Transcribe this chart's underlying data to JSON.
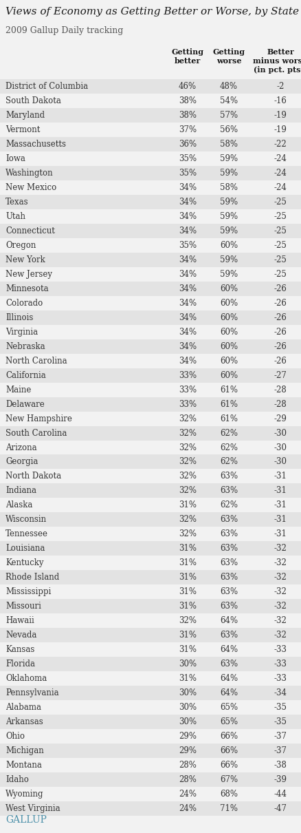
{
  "title": "Views of Economy as Getting Better or Worse, by State",
  "subtitle": "2009 Gallup Daily tracking",
  "col_headers_line1": [
    "Getting",
    "Getting",
    "Better"
  ],
  "col_headers_line2": [
    "better",
    "worse",
    "minus worse"
  ],
  "col_headers_line3": [
    "",
    "",
    "(in pct. pts.)"
  ],
  "states": [
    "District of Columbia",
    "South Dakota",
    "Maryland",
    "Vermont",
    "Massachusetts",
    "Iowa",
    "Washington",
    "New Mexico",
    "Texas",
    "Utah",
    "Connecticut",
    "Oregon",
    "New York",
    "New Jersey",
    "Minnesota",
    "Colorado",
    "Illinois",
    "Virginia",
    "Nebraska",
    "North Carolina",
    "California",
    "Maine",
    "Delaware",
    "New Hampshire",
    "South Carolina",
    "Arizona",
    "Georgia",
    "North Dakota",
    "Indiana",
    "Alaska",
    "Wisconsin",
    "Tennessee",
    "Louisiana",
    "Kentucky",
    "Rhode Island",
    "Mississippi",
    "Missouri",
    "Hawaii",
    "Nevada",
    "Kansas",
    "Florida",
    "Oklahoma",
    "Pennsylvania",
    "Alabama",
    "Arkansas",
    "Ohio",
    "Michigan",
    "Montana",
    "Idaho",
    "Wyoming",
    "West Virginia"
  ],
  "getting_better": [
    "46%",
    "38%",
    "38%",
    "37%",
    "36%",
    "35%",
    "35%",
    "34%",
    "34%",
    "34%",
    "34%",
    "35%",
    "34%",
    "34%",
    "34%",
    "34%",
    "34%",
    "34%",
    "34%",
    "34%",
    "33%",
    "33%",
    "33%",
    "32%",
    "32%",
    "32%",
    "32%",
    "32%",
    "32%",
    "31%",
    "32%",
    "32%",
    "31%",
    "31%",
    "31%",
    "31%",
    "31%",
    "32%",
    "31%",
    "31%",
    "30%",
    "31%",
    "30%",
    "30%",
    "30%",
    "29%",
    "29%",
    "28%",
    "28%",
    "24%",
    "24%"
  ],
  "getting_worse": [
    "48%",
    "54%",
    "57%",
    "56%",
    "58%",
    "59%",
    "59%",
    "58%",
    "59%",
    "59%",
    "59%",
    "60%",
    "59%",
    "59%",
    "60%",
    "60%",
    "60%",
    "60%",
    "60%",
    "60%",
    "60%",
    "61%",
    "61%",
    "61%",
    "62%",
    "62%",
    "62%",
    "63%",
    "63%",
    "62%",
    "63%",
    "63%",
    "63%",
    "63%",
    "63%",
    "63%",
    "63%",
    "64%",
    "63%",
    "64%",
    "63%",
    "64%",
    "64%",
    "65%",
    "65%",
    "66%",
    "66%",
    "66%",
    "67%",
    "68%",
    "71%"
  ],
  "better_minus_worse": [
    "-2",
    "-16",
    "-19",
    "-19",
    "-22",
    "-24",
    "-24",
    "-24",
    "-25",
    "-25",
    "-25",
    "-25",
    "-25",
    "-25",
    "-26",
    "-26",
    "-26",
    "-26",
    "-26",
    "-26",
    "-27",
    "-28",
    "-28",
    "-29",
    "-30",
    "-30",
    "-30",
    "-31",
    "-31",
    "-31",
    "-31",
    "-31",
    "-32",
    "-32",
    "-32",
    "-32",
    "-32",
    "-32",
    "-32",
    "-33",
    "-33",
    "-33",
    "-34",
    "-35",
    "-35",
    "-37",
    "-37",
    "-38",
    "-39",
    "-44",
    "-47"
  ],
  "row_bg_even": "#e3e3e3",
  "row_bg_odd": "#f2f2f2",
  "bg_color": "#f2f2f2",
  "title_color": "#1a1a1a",
  "subtitle_color": "#555555",
  "text_color": "#333333",
  "header_color": "#1a1a1a",
  "gallup_color": "#4a8fa8",
  "fig_width": 4.39,
  "fig_height": 12.1,
  "dpi": 100
}
